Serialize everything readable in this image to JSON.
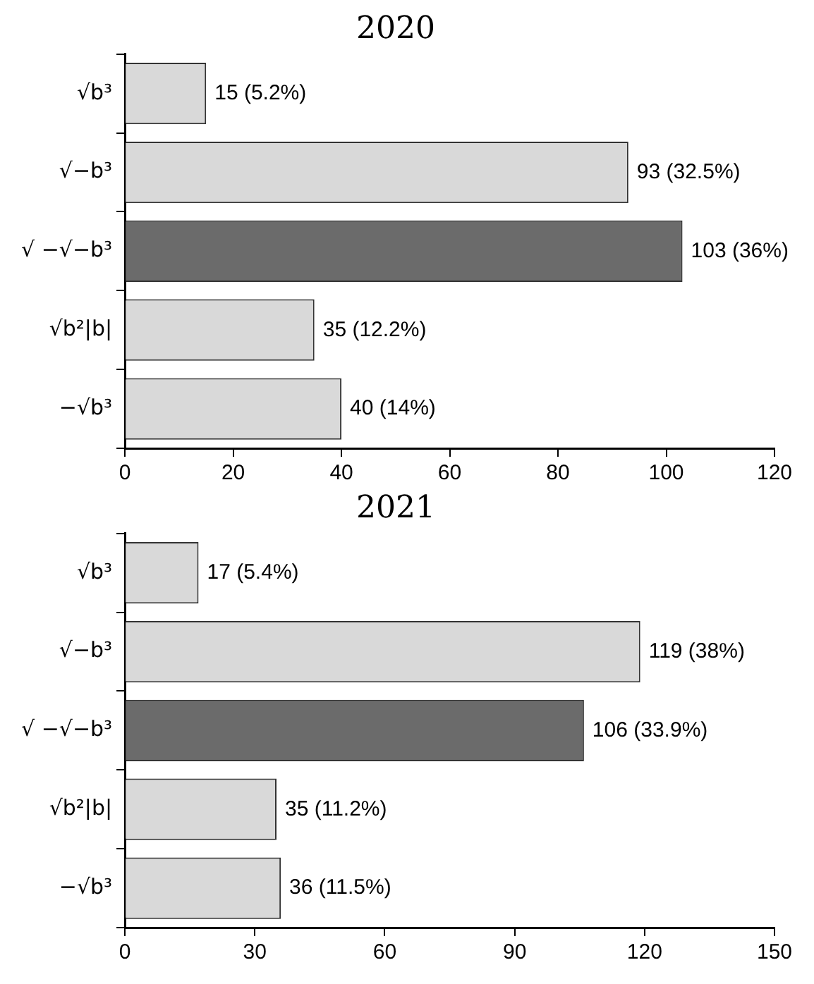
{
  "chart_data": [
    {
      "type": "bar",
      "orientation": "horizontal",
      "title": "2020",
      "categories": [
        "√b³",
        "√−b³",
        "√ −√−b³",
        "√b²|b|",
        "−√b³"
      ],
      "values": [
        15,
        93,
        103,
        35,
        40
      ],
      "colors": [
        "#d9d9d9",
        "#d9d9d9",
        "#6b6b6b",
        "#d9d9d9",
        "#d9d9d9"
      ],
      "value_labels": [
        "15 (5.2%)",
        "93 (32.5%)",
        "103 (36%)",
        "35 (12.2%)",
        "40 (14%)"
      ],
      "xlim": [
        0,
        120
      ],
      "xticks": [
        0,
        20,
        40,
        60,
        80,
        100,
        120
      ],
      "grid": false,
      "legend": false
    },
    {
      "type": "bar",
      "orientation": "horizontal",
      "title": "2021",
      "categories": [
        "√b³",
        "√−b³",
        "√ −√−b³",
        "√b²|b|",
        "−√b³"
      ],
      "values": [
        17,
        119,
        106,
        35,
        36
      ],
      "colors": [
        "#d9d9d9",
        "#d9d9d9",
        "#6b6b6b",
        "#d9d9d9",
        "#d9d9d9"
      ],
      "value_labels": [
        "17 (5.4%)",
        "119 (38%)",
        "106 (33.9%)",
        "35 (11.2%)",
        "36 (11.5%)"
      ],
      "xlim": [
        0,
        150
      ],
      "xticks": [
        0,
        30,
        60,
        90,
        120,
        150
      ],
      "grid": false,
      "legend": false
    }
  ]
}
